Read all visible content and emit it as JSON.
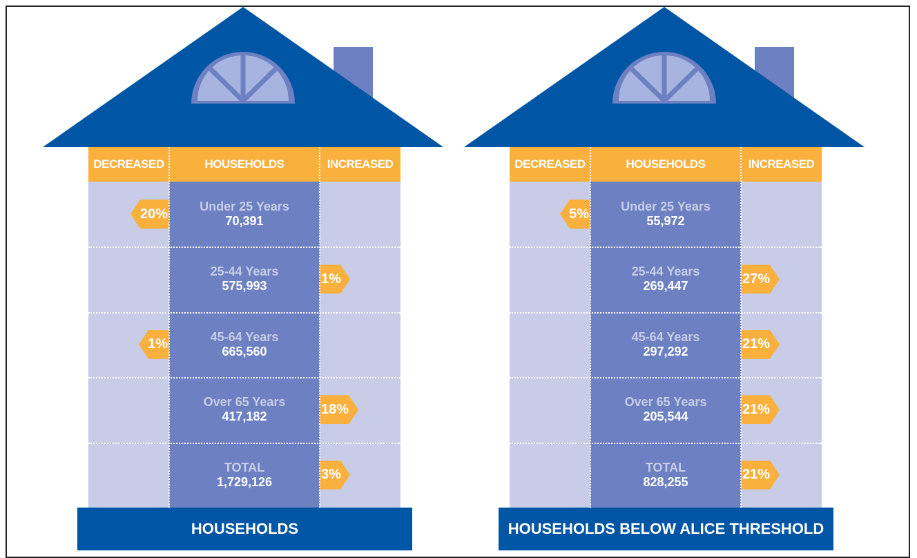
{
  "houses": [
    {
      "title": "HOUSEHOLDS",
      "headers": [
        "DECREASED",
        "HOUSEHOLDS",
        "INCREASED"
      ],
      "rows": [
        {
          "label": "Under 25 Years",
          "count": "70,391",
          "change": "20%",
          "direction": "decreased"
        },
        {
          "label": "25-44 Years",
          "count": "575,993",
          "change": "1%",
          "direction": "increased"
        },
        {
          "label": "45-64 Years",
          "count": "665,560",
          "change": "1%",
          "direction": "decreased"
        },
        {
          "label": "Over 65 Years",
          "count": "417,182",
          "change": "18%",
          "direction": "increased"
        },
        {
          "label": "TOTAL",
          "count": "1,729,126",
          "change": "3%",
          "direction": "increased"
        }
      ]
    },
    {
      "title": "HOUSEHOLDS BELOW ALICE THRESHOLD",
      "headers": [
        "DECREASED",
        "HOUSEHOLDS",
        "INCREASED"
      ],
      "rows": [
        {
          "label": "Under 25 Years",
          "count": "55,972",
          "change": "5%",
          "direction": "decreased"
        },
        {
          "label": "25-44 Years",
          "count": "269,447",
          "change": "27%",
          "direction": "increased"
        },
        {
          "label": "45-64 Years",
          "count": "297,292",
          "change": "21%",
          "direction": "increased"
        },
        {
          "label": "Over 65 Years",
          "count": "205,544",
          "change": "21%",
          "direction": "increased"
        },
        {
          "label": "TOTAL",
          "count": "828,255",
          "change": "21%",
          "direction": "increased"
        }
      ]
    }
  ]
}
